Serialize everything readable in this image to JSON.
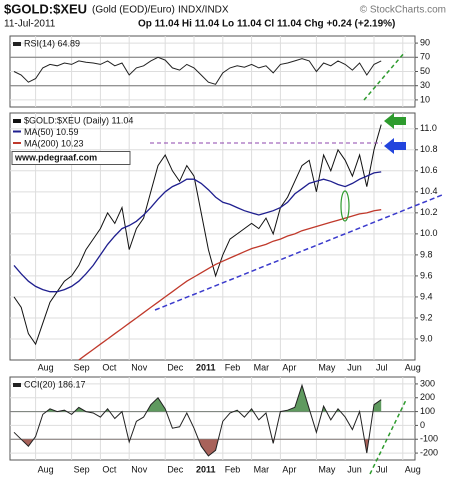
{
  "header": {
    "symbol": "$GOLD:$XEU",
    "name": "(Gold (EOD)/Euro)",
    "exchange": "INDX/INDX",
    "source": "© StockCharts.com",
    "date": "11-Jul-2011",
    "quote": "Op 11.04 Hi 11.04 Lo 11.04 Cl 11.04 Chg +0.24 (+2.19%)"
  },
  "chart_data": [
    {
      "type": "line",
      "series": [
        {
          "name": "RSI(14) 64.89",
          "color": "#222222",
          "values": [
            50,
            45,
            35,
            40,
            55,
            60,
            58,
            62,
            60,
            65,
            63,
            62,
            60,
            65,
            58,
            62,
            45,
            55,
            58,
            65,
            70,
            66,
            55,
            52,
            60,
            55,
            45,
            35,
            32,
            48,
            55,
            58,
            56,
            60,
            55,
            58,
            48,
            60,
            62,
            65,
            68,
            65,
            50,
            62,
            58,
            65,
            60,
            52,
            62,
            45,
            60,
            64.89,
            null,
            null,
            null,
            null
          ]
        }
      ],
      "ylim": [
        0,
        100
      ],
      "yticks": [
        90,
        70,
        50,
        30,
        10
      ],
      "hlines": [
        70,
        30
      ],
      "grid": true
    },
    {
      "type": "line",
      "categories": [
        null,
        null,
        null,
        "Aug",
        null,
        null,
        null,
        null,
        "Sep",
        null,
        null,
        null,
        "Oct",
        null,
        null,
        null,
        "Nov",
        null,
        null,
        null,
        null,
        "Dec",
        null,
        null,
        null,
        "2011",
        null,
        null,
        null,
        "Feb",
        null,
        null,
        null,
        "Mar",
        null,
        null,
        null,
        "Apr",
        null,
        null,
        null,
        null,
        "May",
        null,
        null,
        null,
        "Jun",
        null,
        null,
        null,
        "Jul",
        null,
        null,
        null,
        "Aug",
        null
      ],
      "series": [
        {
          "name": "$GOLD:$XEU (Daily) 11.04",
          "color": "#111111",
          "values": [
            9.4,
            9.3,
            9.05,
            8.95,
            9.15,
            9.35,
            9.45,
            9.55,
            9.6,
            9.7,
            9.85,
            9.95,
            10.05,
            10.2,
            10.1,
            10.25,
            9.85,
            10.05,
            10.15,
            10.4,
            10.65,
            10.75,
            10.6,
            10.5,
            10.65,
            10.55,
            10.2,
            9.85,
            9.6,
            9.8,
            9.95,
            10.0,
            10.05,
            10.1,
            10.05,
            10.15,
            10.0,
            10.25,
            10.35,
            10.5,
            10.65,
            10.7,
            10.4,
            10.75,
            10.6,
            10.8,
            10.7,
            10.55,
            10.75,
            10.45,
            10.8,
            11.04,
            null,
            null,
            null,
            null
          ]
        },
        {
          "name": "MA(50) 10.59",
          "color": "#1f1f8f",
          "values": [
            9.7,
            9.62,
            9.55,
            9.5,
            9.47,
            9.45,
            9.45,
            9.47,
            9.5,
            9.55,
            9.62,
            9.7,
            9.8,
            9.9,
            9.98,
            10.05,
            10.08,
            10.12,
            10.18,
            10.25,
            10.33,
            10.4,
            10.45,
            10.48,
            10.52,
            10.52,
            10.48,
            10.42,
            10.35,
            10.3,
            10.28,
            10.25,
            10.22,
            10.2,
            10.18,
            10.2,
            10.22,
            10.25,
            10.3,
            10.38,
            10.43,
            10.48,
            10.5,
            10.52,
            10.5,
            10.47,
            10.45,
            10.48,
            10.52,
            10.55,
            10.58,
            10.59,
            null,
            null,
            null,
            null
          ]
        },
        {
          "name": "MA(200) 10.23",
          "color": "#c0392b",
          "values": [
            null,
            null,
            null,
            null,
            null,
            null,
            null,
            null,
            null,
            8.8,
            8.85,
            8.9,
            8.95,
            9.0,
            9.05,
            9.1,
            9.15,
            9.2,
            9.25,
            9.3,
            9.35,
            9.4,
            9.45,
            9.5,
            9.55,
            9.59,
            9.63,
            9.67,
            9.71,
            9.74,
            9.77,
            9.8,
            9.83,
            9.86,
            9.88,
            9.9,
            9.93,
            9.95,
            9.98,
            10.0,
            10.03,
            10.05,
            10.07,
            10.09,
            10.11,
            10.13,
            10.15,
            10.17,
            10.19,
            10.2,
            10.22,
            10.23,
            null,
            null,
            null,
            null
          ]
        }
      ],
      "annotation": "www.pdegraaf.com",
      "ylim": [
        8.8,
        11.15
      ],
      "yticks": [
        {
          "value": 11,
          "label": "11.0"
        },
        10.8,
        10.6,
        10.4,
        10.2,
        {
          "value": 10,
          "label": "10.0"
        },
        9.8,
        9.6,
        9.4,
        9.2,
        {
          "value": 9,
          "label": "9.0"
        }
      ],
      "grid": true
    },
    {
      "type": "line",
      "categories": [
        null,
        null,
        null,
        "Aug",
        null,
        null,
        null,
        null,
        "Sep",
        null,
        null,
        null,
        "Oct",
        null,
        null,
        null,
        "Nov",
        null,
        null,
        null,
        null,
        "Dec",
        null,
        null,
        null,
        "2011",
        null,
        null,
        null,
        "Feb",
        null,
        null,
        null,
        "Mar",
        null,
        null,
        null,
        "Apr",
        null,
        null,
        null,
        null,
        "May",
        null,
        null,
        null,
        "Jun",
        null,
        null,
        null,
        "Jul",
        null,
        null,
        null,
        "Aug",
        null
      ],
      "series": [
        {
          "name": "CCI(20) 186.17",
          "color": "#222222",
          "values": [
            -50,
            -100,
            -150,
            -80,
            80,
            120,
            100,
            110,
            80,
            130,
            100,
            90,
            60,
            120,
            50,
            100,
            -120,
            30,
            60,
            150,
            200,
            120,
            -20,
            -10,
            90,
            -20,
            -150,
            -220,
            -180,
            30,
            90,
            110,
            60,
            120,
            40,
            90,
            -130,
            100,
            110,
            130,
            290,
            120,
            -50,
            140,
            40,
            120,
            60,
            -30,
            100,
            -200,
            150,
            186.17,
            null,
            null,
            null,
            null
          ]
        }
      ],
      "ylim": [
        -250,
        350
      ],
      "yticks": [
        300,
        200,
        100,
        0,
        -100,
        -200
      ],
      "hlines": [
        100,
        -100
      ],
      "fill_above": "#5f9a5f",
      "fill_below": "#a8625a",
      "grid": true
    }
  ]
}
